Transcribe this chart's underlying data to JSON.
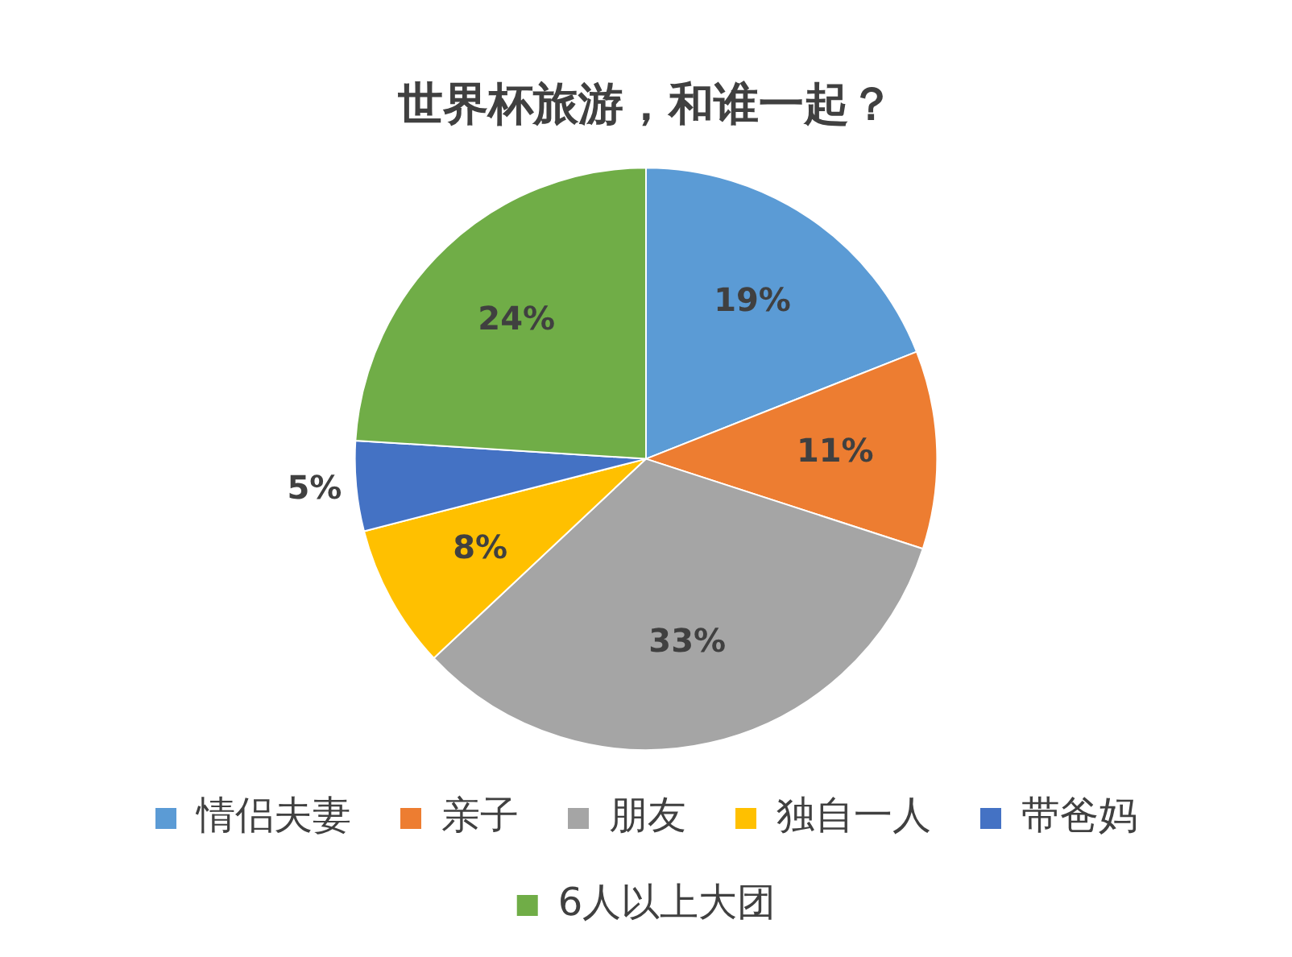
{
  "chart_data": {
    "type": "pie",
    "title": "世界杯旅游，和谁一起？",
    "categories": [
      "情侣夫妻",
      "亲子",
      "朋友",
      "独自一人",
      "带爸妈",
      "6人以上大团"
    ],
    "values": [
      19,
      11,
      33,
      8,
      5,
      24
    ],
    "colors": [
      "#5b9bd5",
      "#ed7d31",
      "#a5a5a5",
      "#ffc000",
      "#4472c4",
      "#70ad47"
    ],
    "value_labels": [
      "19%",
      "11%",
      "33%",
      "8%",
      "5%",
      "24%"
    ],
    "legend": "bottom"
  }
}
